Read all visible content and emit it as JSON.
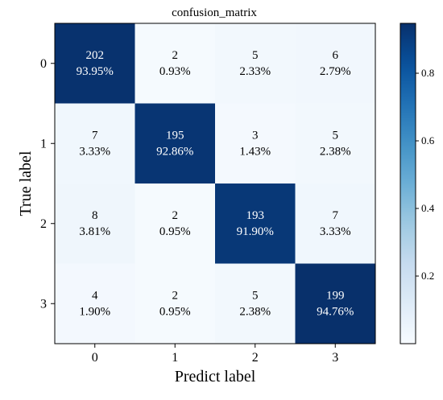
{
  "chart_data": {
    "type": "heatmap",
    "title": "confusion_matrix",
    "xlabel": "Predict label",
    "ylabel": "True label",
    "x_tick_labels": [
      "0",
      "1",
      "2",
      "3"
    ],
    "y_tick_labels": [
      "0",
      "1",
      "2",
      "3"
    ],
    "counts": [
      [
        202,
        2,
        5,
        6
      ],
      [
        7,
        195,
        3,
        5
      ],
      [
        8,
        2,
        193,
        7
      ],
      [
        4,
        2,
        5,
        199
      ]
    ],
    "percent_labels": [
      [
        "93.95%",
        "0.93%",
        "2.33%",
        "2.79%"
      ],
      [
        "3.33%",
        "92.86%",
        "1.43%",
        "2.38%"
      ],
      [
        "3.81%",
        "0.95%",
        "91.90%",
        "3.33%"
      ],
      [
        "1.90%",
        "0.95%",
        "2.38%",
        "94.76%"
      ]
    ],
    "normalized": [
      [
        0.9395,
        0.0093,
        0.0233,
        0.0279
      ],
      [
        0.0333,
        0.9286,
        0.0143,
        0.0238
      ],
      [
        0.0381,
        0.0095,
        0.919,
        0.0333
      ],
      [
        0.019,
        0.0095,
        0.0238,
        0.9476
      ]
    ],
    "colormap": "Blues",
    "colorbar": {
      "range": [
        0.0,
        0.9476
      ],
      "ticks": [
        0.2,
        0.4,
        0.6,
        0.8
      ],
      "tick_labels": [
        "0.2",
        "0.4",
        "0.6",
        "0.8"
      ]
    },
    "colors": {
      "low": "#f7fbff",
      "high": "#08306b",
      "text_dark_cell": "#ffffff",
      "text_light_cell": "#000000"
    }
  }
}
